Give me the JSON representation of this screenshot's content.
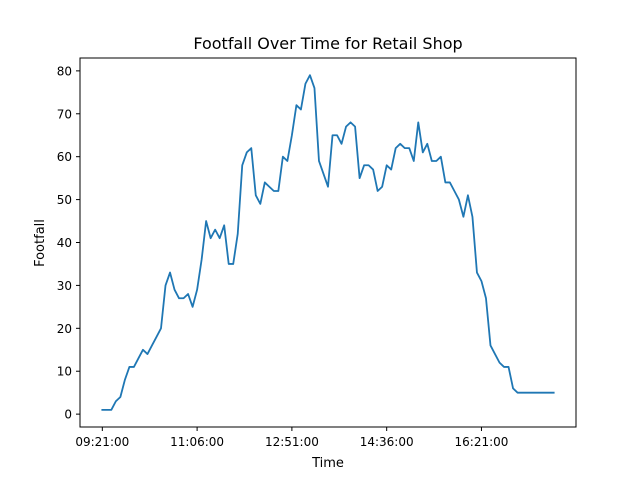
{
  "chart_data": {
    "type": "line",
    "title": "Footfall Over Time for Retail Shop",
    "xlabel": "Time",
    "ylabel": "Footfall",
    "x_tick_labels": [
      "09:21:00",
      "11:06:00",
      "12:51:00",
      "14:36:00",
      "16:21:00"
    ],
    "x_tick_indices": [
      0,
      21,
      42,
      63,
      84
    ],
    "y_ticks": [
      0,
      10,
      20,
      30,
      40,
      50,
      60,
      70,
      80
    ],
    "ylim": [
      -3.0,
      83.0
    ],
    "grid": false,
    "series": [
      {
        "color": "#1f77b4",
        "values": [
          1,
          1,
          1,
          3,
          4,
          8,
          11,
          11,
          13,
          15,
          14,
          16,
          18,
          20,
          30,
          33,
          29,
          27,
          27,
          28,
          25,
          29,
          36,
          45,
          41,
          43,
          41,
          44,
          35,
          35,
          42,
          58,
          61,
          62,
          51,
          49,
          54,
          53,
          52,
          52,
          60,
          59,
          65,
          72,
          71,
          77,
          79,
          76,
          59,
          56,
          53,
          65,
          65,
          63,
          67,
          68,
          67,
          55,
          58,
          58,
          57,
          52,
          53,
          58,
          57,
          62,
          63,
          62,
          62,
          59,
          68,
          61,
          63,
          59,
          59,
          60,
          54,
          54,
          52,
          50,
          46,
          51,
          46,
          33,
          31,
          27,
          16,
          14,
          12,
          11,
          11,
          6,
          5,
          5,
          5,
          5,
          5,
          5,
          5,
          5,
          5
        ]
      }
    ]
  }
}
